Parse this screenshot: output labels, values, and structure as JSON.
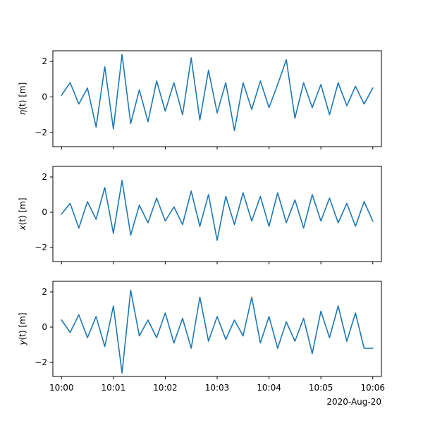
{
  "chart_data": [
    {
      "type": "line",
      "ylabel_var": "η",
      "ylabel_rest": "(t) [m]",
      "ylim": [
        -2.8,
        2.6
      ],
      "yticks": [
        -2,
        0,
        2
      ],
      "xlim": [
        "09:59:50",
        "10:06:10"
      ],
      "xticks": [
        "10:00",
        "10:01",
        "10:02",
        "10:03",
        "10:04",
        "10:05",
        "10:06"
      ],
      "show_xtick_labels": false,
      "grid": false,
      "series": [
        {
          "color": "#1f77b4",
          "x": [
            "10:00:00",
            "10:00:10",
            "10:00:20",
            "10:00:30",
            "10:00:40",
            "10:00:50",
            "10:01:00",
            "10:01:10",
            "10:01:20",
            "10:01:30",
            "10:01:40",
            "10:01:50",
            "10:02:00",
            "10:02:10",
            "10:02:20",
            "10:02:30",
            "10:02:40",
            "10:02:50",
            "10:03:00",
            "10:03:10",
            "10:03:20",
            "10:03:30",
            "10:03:40",
            "10:03:50",
            "10:04:00",
            "10:04:10",
            "10:04:20",
            "10:04:30",
            "10:04:40",
            "10:04:50",
            "10:05:00",
            "10:05:10",
            "10:05:20",
            "10:05:30",
            "10:05:40",
            "10:05:50",
            "10:06:00"
          ],
          "values": [
            0.1,
            0.8,
            -0.4,
            0.5,
            -1.7,
            1.7,
            -1.8,
            2.4,
            -1.5,
            0.4,
            -1.4,
            0.9,
            -0.8,
            0.8,
            -1.0,
            2.2,
            -1.3,
            1.5,
            -0.9,
            0.8,
            -1.9,
            0.8,
            -0.7,
            0.9,
            -0.6,
            0.7,
            2.1,
            -1.2,
            0.8,
            -0.6,
            0.7,
            -1.0,
            0.8,
            -0.5,
            0.6,
            -0.4,
            0.5
          ]
        }
      ]
    },
    {
      "type": "line",
      "ylabel_var": "x",
      "ylabel_rest": "(t) [m]",
      "ylim": [
        -2.8,
        2.6
      ],
      "yticks": [
        -2,
        0,
        2
      ],
      "xlim": [
        "09:59:50",
        "10:06:10"
      ],
      "xticks": [
        "10:00",
        "10:01",
        "10:02",
        "10:03",
        "10:04",
        "10:05",
        "10:06"
      ],
      "show_xtick_labels": false,
      "grid": false,
      "series": [
        {
          "color": "#1f77b4",
          "x": [
            "10:00:00",
            "10:00:10",
            "10:00:20",
            "10:00:30",
            "10:00:40",
            "10:00:50",
            "10:01:00",
            "10:01:10",
            "10:01:20",
            "10:01:30",
            "10:01:40",
            "10:01:50",
            "10:02:00",
            "10:02:10",
            "10:02:20",
            "10:02:30",
            "10:02:40",
            "10:02:50",
            "10:03:00",
            "10:03:10",
            "10:03:20",
            "10:03:30",
            "10:03:40",
            "10:03:50",
            "10:04:00",
            "10:04:10",
            "10:04:20",
            "10:04:30",
            "10:04:40",
            "10:04:50",
            "10:05:00",
            "10:05:10",
            "10:05:20",
            "10:05:30",
            "10:05:40",
            "10:05:50",
            "10:06:00"
          ],
          "values": [
            -0.1,
            0.5,
            -0.9,
            0.6,
            -0.4,
            1.4,
            -1.2,
            1.8,
            -1.3,
            0.4,
            -0.6,
            0.8,
            -0.5,
            0.3,
            -0.7,
            1.2,
            -0.8,
            1.0,
            -1.6,
            0.9,
            -0.7,
            1.1,
            -0.5,
            0.9,
            -0.8,
            1.1,
            -0.6,
            0.7,
            -0.9,
            1.0,
            -0.5,
            0.8,
            -0.6,
            0.5,
            -0.8,
            0.6,
            -0.5
          ]
        }
      ]
    },
    {
      "type": "line",
      "ylabel_var": "y",
      "ylabel_rest": "(t) [m]",
      "ylim": [
        -2.8,
        2.6
      ],
      "yticks": [
        -2,
        0,
        2
      ],
      "xlim": [
        "09:59:50",
        "10:06:10"
      ],
      "xticks": [
        "10:00",
        "10:01",
        "10:02",
        "10:03",
        "10:04",
        "10:05",
        "10:06"
      ],
      "show_xtick_labels": true,
      "grid": false,
      "x_note": "2020-Aug-20",
      "series": [
        {
          "color": "#1f77b4",
          "x": [
            "10:00:00",
            "10:00:10",
            "10:00:20",
            "10:00:30",
            "10:00:40",
            "10:00:50",
            "10:01:00",
            "10:01:10",
            "10:01:20",
            "10:01:30",
            "10:01:40",
            "10:01:50",
            "10:02:00",
            "10:02:10",
            "10:02:20",
            "10:02:30",
            "10:02:40",
            "10:02:50",
            "10:03:00",
            "10:03:10",
            "10:03:20",
            "10:03:30",
            "10:03:40",
            "10:03:50",
            "10:04:00",
            "10:04:10",
            "10:04:20",
            "10:04:30",
            "10:04:40",
            "10:04:50",
            "10:05:00",
            "10:05:10",
            "10:05:20",
            "10:05:30",
            "10:05:40",
            "10:05:50",
            "10:06:00"
          ],
          "values": [
            0.4,
            -0.3,
            0.7,
            -0.6,
            0.6,
            -1.1,
            1.2,
            -2.6,
            2.1,
            -0.5,
            0.4,
            -0.6,
            0.8,
            -0.9,
            0.5,
            -1.2,
            1.7,
            -0.8,
            0.6,
            -0.7,
            0.4,
            -0.5,
            1.7,
            -0.9,
            0.6,
            -1.2,
            0.3,
            -0.8,
            0.5,
            -1.5,
            0.9,
            -0.6,
            1.2,
            -0.8,
            0.8,
            -1.2,
            -1.2
          ]
        }
      ]
    }
  ]
}
